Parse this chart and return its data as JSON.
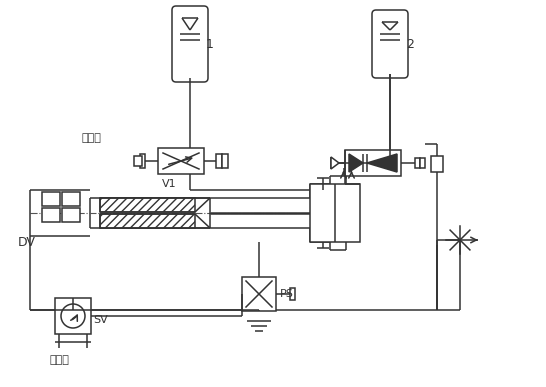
{
  "bg_color": "#ffffff",
  "line_color": "#333333",
  "figsize": [
    5.46,
    3.87
  ],
  "dpi": 100,
  "labels": {
    "elec_signal": "电讯号",
    "V1": "V1",
    "DV": "DV",
    "SV": "SV",
    "pump": "来自泵",
    "PS": "PS",
    "acc1": "1",
    "acc2": "2"
  }
}
